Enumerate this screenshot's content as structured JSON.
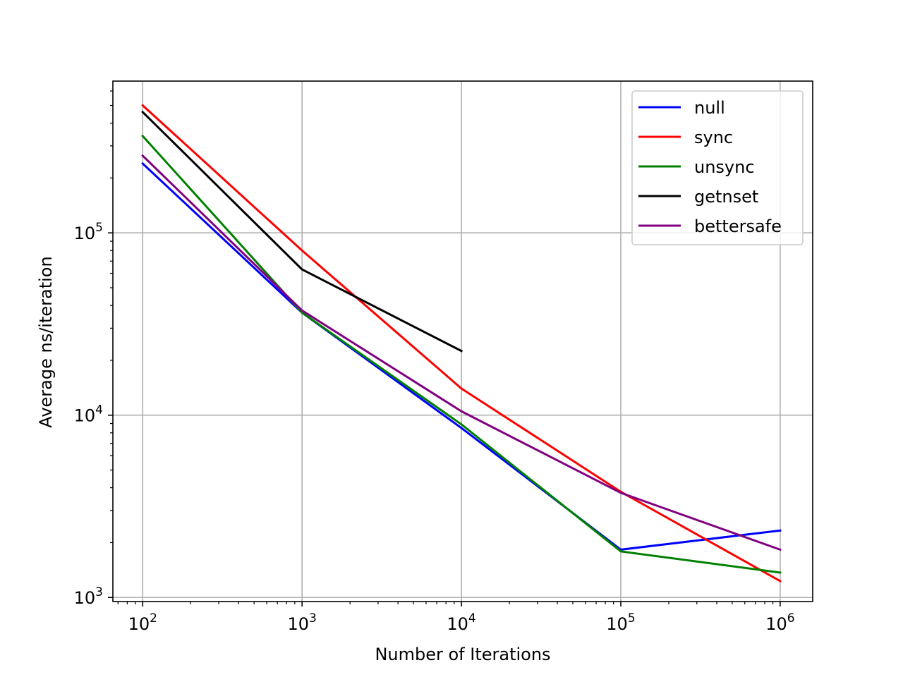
{
  "chart_data": {
    "type": "line",
    "title": "",
    "xlabel": "Number of Iterations",
    "ylabel": "Average ns/iteration",
    "xscale": "log",
    "yscale": "log",
    "xlim": [
      65,
      1600000
    ],
    "ylim": [
      950,
      680000
    ],
    "x_ticks": [
      {
        "value": 100,
        "base": "10",
        "exp": "2"
      },
      {
        "value": 1000,
        "base": "10",
        "exp": "3"
      },
      {
        "value": 10000,
        "base": "10",
        "exp": "4"
      },
      {
        "value": 100000,
        "base": "10",
        "exp": "5"
      },
      {
        "value": 1000000,
        "base": "10",
        "exp": "6"
      }
    ],
    "y_ticks": [
      {
        "value": 1000,
        "base": "10",
        "exp": "3"
      },
      {
        "value": 10000,
        "base": "10",
        "exp": "4"
      },
      {
        "value": 100000,
        "base": "10",
        "exp": "5"
      }
    ],
    "grid": true,
    "legend_position": "top-right",
    "series": [
      {
        "name": "null",
        "color": "#0000ff",
        "x": [
          100,
          1000,
          10000,
          100000,
          1000000
        ],
        "y": [
          240000,
          36500,
          8500,
          1830,
          2330
        ]
      },
      {
        "name": "sync",
        "color": "#ff0000",
        "x": [
          100,
          1000,
          10000,
          100000,
          1000000
        ],
        "y": [
          500000,
          80000,
          14000,
          3800,
          1230
        ]
      },
      {
        "name": "unsync",
        "color": "#008000",
        "x": [
          100,
          1000,
          10000,
          100000,
          1000000
        ],
        "y": [
          340000,
          36500,
          8900,
          1790,
          1370
        ]
      },
      {
        "name": "getnset",
        "color": "#000000",
        "x": [
          100,
          1000,
          10000
        ],
        "y": [
          460000,
          63000,
          22500
        ]
      },
      {
        "name": "bettersafe",
        "color": "#800080",
        "x": [
          100,
          1000,
          10000,
          100000,
          1000000
        ],
        "y": [
          265000,
          37500,
          10500,
          3750,
          1830
        ]
      }
    ]
  }
}
